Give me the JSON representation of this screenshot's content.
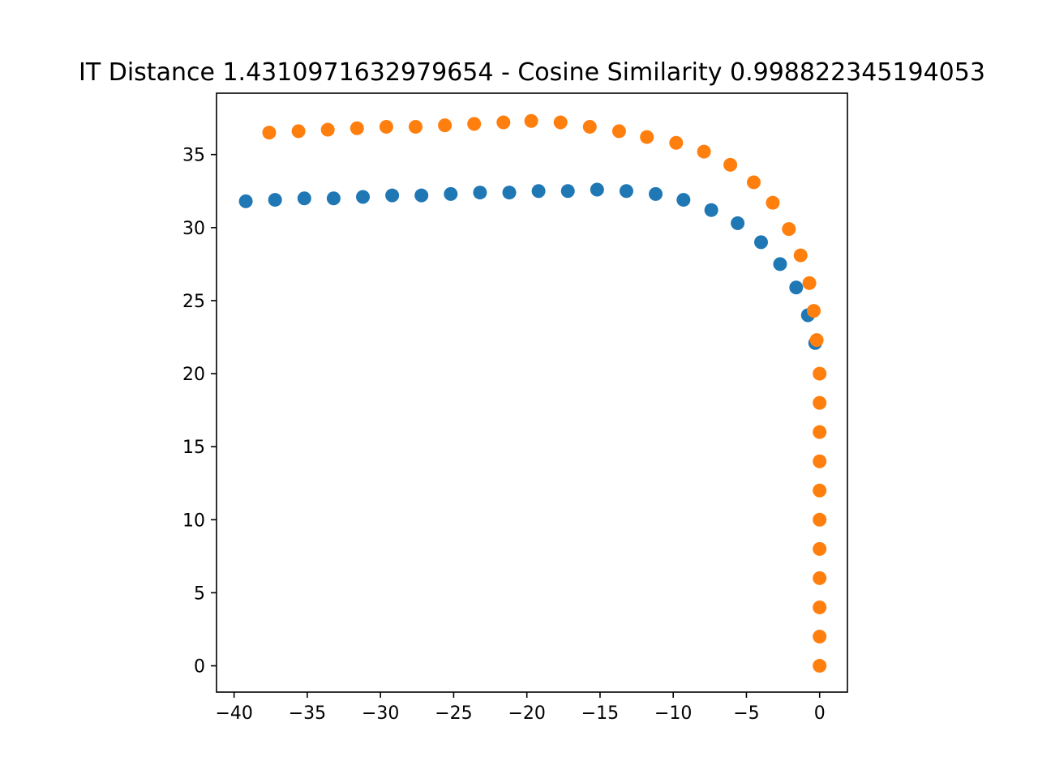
{
  "chart_data": {
    "type": "scatter",
    "title": "IT Distance 1.4310971632979654 - Cosine Similarity 0.998822345194053",
    "xlabel": "",
    "ylabel": "",
    "xlim": [
      -41.2,
      1.9
    ],
    "ylim": [
      -1.8,
      39.2
    ],
    "xticks": [
      -40,
      -35,
      -30,
      -25,
      -20,
      -15,
      -10,
      -5,
      0
    ],
    "yticks": [
      0,
      5,
      10,
      15,
      20,
      25,
      30,
      35
    ],
    "grid": false,
    "legend": "none",
    "series": [
      {
        "color": "#1f77b4",
        "points": [
          [
            -0.3,
            22.1
          ],
          [
            -0.8,
            24.0
          ],
          [
            -1.6,
            25.9
          ],
          [
            -2.7,
            27.5
          ],
          [
            -4.0,
            29.0
          ],
          [
            -5.6,
            30.3
          ],
          [
            -7.4,
            31.2
          ],
          [
            -9.3,
            31.9
          ],
          [
            -11.2,
            32.3
          ],
          [
            -13.2,
            32.5
          ],
          [
            -15.2,
            32.6
          ],
          [
            -17.2,
            32.5
          ],
          [
            -19.2,
            32.5
          ],
          [
            -21.2,
            32.4
          ],
          [
            -23.2,
            32.4
          ],
          [
            -25.2,
            32.3
          ],
          [
            -27.2,
            32.2
          ],
          [
            -29.2,
            32.2
          ],
          [
            -31.2,
            32.1
          ],
          [
            -33.2,
            32.0
          ],
          [
            -35.2,
            32.0
          ],
          [
            -37.2,
            31.9
          ],
          [
            -39.2,
            31.8
          ]
        ]
      },
      {
        "color": "#ff7f0e",
        "points": [
          [
            0.0,
            0.0
          ],
          [
            0.0,
            2.0
          ],
          [
            0.0,
            4.0
          ],
          [
            0.0,
            6.0
          ],
          [
            0.0,
            8.0
          ],
          [
            0.0,
            10.0
          ],
          [
            0.0,
            12.0
          ],
          [
            0.0,
            14.0
          ],
          [
            0.0,
            16.0
          ],
          [
            0.0,
            18.0
          ],
          [
            0.0,
            20.0
          ],
          [
            -0.2,
            22.3
          ],
          [
            -0.4,
            24.3
          ],
          [
            -0.7,
            26.2
          ],
          [
            -1.3,
            28.1
          ],
          [
            -2.1,
            29.9
          ],
          [
            -3.2,
            31.7
          ],
          [
            -4.5,
            33.1
          ],
          [
            -6.1,
            34.3
          ],
          [
            -7.9,
            35.2
          ],
          [
            -9.8,
            35.8
          ],
          [
            -11.8,
            36.2
          ],
          [
            -13.7,
            36.6
          ],
          [
            -15.7,
            36.9
          ],
          [
            -17.7,
            37.2
          ],
          [
            -19.7,
            37.3
          ],
          [
            -21.6,
            37.2
          ],
          [
            -23.6,
            37.1
          ],
          [
            -25.6,
            37.0
          ],
          [
            -27.6,
            36.9
          ],
          [
            -29.6,
            36.9
          ],
          [
            -31.6,
            36.8
          ],
          [
            -33.6,
            36.7
          ],
          [
            -35.6,
            36.6
          ],
          [
            -37.6,
            36.5
          ]
        ]
      }
    ]
  }
}
